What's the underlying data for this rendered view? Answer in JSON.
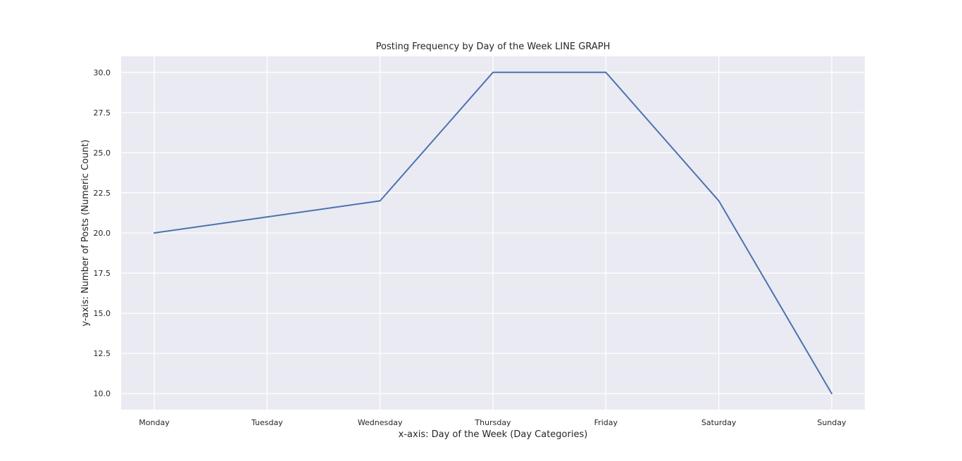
{
  "chart_data": {
    "type": "line",
    "title": "Posting Frequency by Day of the Week LINE GRAPH",
    "xlabel": "x-axis: Day of the Week (Day Categories)",
    "ylabel": "y-axis: Number of Posts (Numeric Count)",
    "categories": [
      "Monday",
      "Tuesday",
      "Wednesday",
      "Thursday",
      "Friday",
      "Saturday",
      "Sunday"
    ],
    "series": [
      {
        "values": [
          20,
          21,
          22,
          30,
          30,
          22,
          10
        ],
        "color": "#4c72b0"
      }
    ],
    "ylim": [
      9.0,
      31.0
    ],
    "yticks": [
      "10.0",
      "12.5",
      "15.0",
      "17.5",
      "20.0",
      "22.5",
      "25.0",
      "27.5",
      "30.0"
    ],
    "grid": true,
    "legend": "none",
    "colors": {
      "plot_background": "#eaeaf2",
      "gridline": "#ffffff",
      "text": "#262626"
    }
  }
}
